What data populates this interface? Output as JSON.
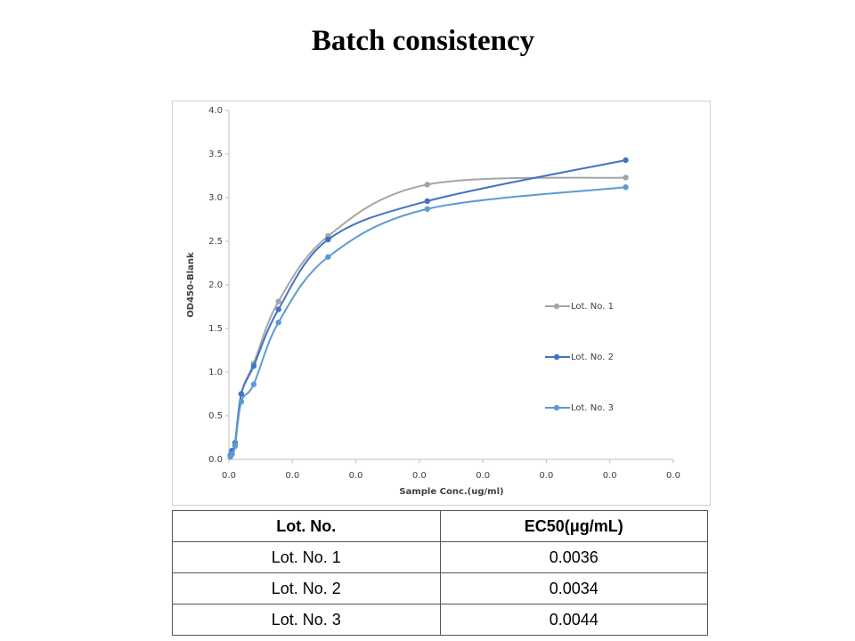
{
  "chart_data": {
    "type": "line",
    "title": "Batch consistency",
    "xlabel": "Sample Conc.(ug/ml)",
    "ylabel": "OD450-Blank",
    "x": [
      0.000122,
      0.000244,
      0.000488,
      0.000977,
      0.001953,
      0.003906,
      0.007813,
      0.015625,
      0.03125
    ],
    "series": [
      {
        "name": "Lot. No. 1",
        "color": "#a5a5a5",
        "values": [
          0.04,
          0.07,
          0.15,
          0.75,
          1.1,
          1.81,
          2.56,
          3.15,
          3.23
        ]
      },
      {
        "name": "Lot. No. 2",
        "color": "#4472c4",
        "values": [
          0.05,
          0.1,
          0.19,
          0.75,
          1.07,
          1.72,
          2.52,
          2.96,
          3.43
        ]
      },
      {
        "name": "Lot. No. 3",
        "color": "#5b9bd5",
        "values": [
          0.03,
          0.06,
          0.16,
          0.66,
          0.86,
          1.57,
          2.32,
          2.87,
          3.12
        ]
      }
    ],
    "xlim": [
      0,
      0.035
    ],
    "xticks": [
      {
        "value": 0,
        "label": "0.0"
      },
      {
        "value": 0.005,
        "label": "0.0"
      },
      {
        "value": 0.01,
        "label": "0.0"
      },
      {
        "value": 0.015,
        "label": "0.0"
      },
      {
        "value": 0.02,
        "label": "0.0"
      },
      {
        "value": 0.025,
        "label": "0.0"
      },
      {
        "value": 0.03,
        "label": "0.0"
      },
      {
        "value": 0.035,
        "label": "0.0"
      }
    ],
    "ylim": [
      0,
      4
    ],
    "yticks": [
      {
        "value": 0,
        "label": "0.0"
      },
      0.5,
      {
        "value": 1,
        "label": "1.0"
      },
      1.5,
      {
        "value": 2,
        "label": "2.0"
      },
      2.5,
      {
        "value": 3,
        "label": "3.0"
      },
      3.5,
      {
        "value": 4,
        "label": "4.0"
      }
    ],
    "grid": false,
    "legend": "right"
  },
  "table": {
    "header": [
      "Lot. No.",
      "EC50(μg/mL)"
    ],
    "rows": [
      [
        "Lot. No. 1",
        "0.0036"
      ],
      [
        "Lot. No. 2",
        "0.0034"
      ],
      [
        "Lot. No. 3",
        "0.0044"
      ]
    ]
  }
}
